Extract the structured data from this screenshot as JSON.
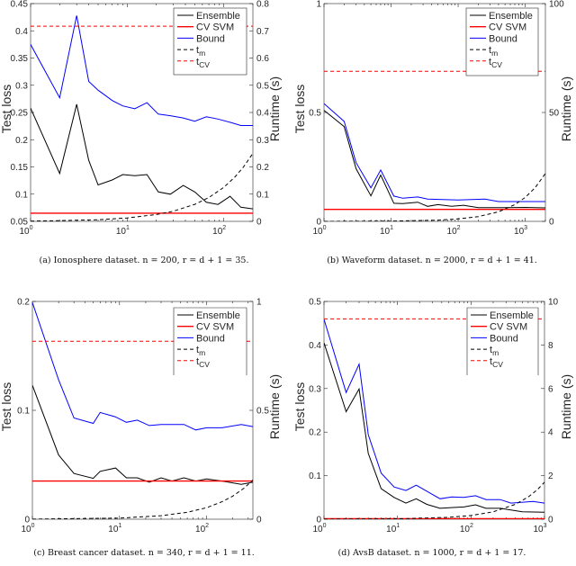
{
  "chart_data": [
    {
      "type": "line",
      "caption": "(a) Ionosphere dataset. n = 200, r = d + 1 = 35.",
      "xscale": "log",
      "xlim": [
        1,
        200
      ],
      "xticks": [
        {
          "base": "10",
          "exp": "0",
          "value": 1
        },
        {
          "base": "10",
          "exp": "1",
          "value": 10
        },
        {
          "base": "10",
          "exp": "2",
          "value": 100
        }
      ],
      "ylabel": "Test loss",
      "ylim": [
        0.05,
        0.45
      ],
      "yticks": [
        "0.05",
        "0.1",
        "0.15",
        "0.2",
        "0.25",
        "0.3",
        "0.35",
        "0.4",
        "0.45"
      ],
      "y2label": "Runtime (s)",
      "y2lim": [
        0,
        0.8
      ],
      "y2ticks": [
        "0",
        "0.1",
        "0.2",
        "0.3",
        "0.4",
        "0.5",
        "0.6",
        "0.7",
        "0.8"
      ],
      "legend_position": "top-right",
      "series": [
        {
          "name": "Ensemble",
          "color": "#000000",
          "dash": "solid",
          "axis": "left",
          "x": [
            1,
            2,
            3,
            4,
            5,
            7,
            9,
            12,
            16,
            21,
            28,
            38,
            50,
            66,
            87,
            116,
            150,
            200
          ],
          "y": [
            0.258,
            0.138,
            0.265,
            0.162,
            0.117,
            0.126,
            0.136,
            0.134,
            0.136,
            0.104,
            0.1,
            0.116,
            0.104,
            0.085,
            0.081,
            0.096,
            0.076,
            0.073
          ]
        },
        {
          "name": "CV SVM",
          "color": "#ff0000",
          "dash": "solid",
          "axis": "left",
          "x": [
            1,
            200
          ],
          "y": [
            0.065,
            0.065
          ]
        },
        {
          "name": "Bound",
          "color": "#0000ff",
          "dash": "solid",
          "axis": "left",
          "x": [
            1,
            2,
            3,
            4,
            5,
            7,
            9,
            12,
            16,
            21,
            28,
            38,
            50,
            66,
            87,
            116,
            150,
            200
          ],
          "y": [
            0.375,
            0.277,
            0.428,
            0.307,
            0.291,
            0.272,
            0.262,
            0.257,
            0.268,
            0.247,
            0.244,
            0.24,
            0.234,
            0.242,
            0.238,
            0.232,
            0.226,
            0.226
          ]
        },
        {
          "name": "t_m",
          "color": "#000000",
          "dash": "dashed",
          "axis": "right",
          "x": [
            1,
            2,
            5,
            10,
            20,
            30,
            50,
            70,
            100,
            130,
            160,
            200
          ],
          "y": [
            0.001,
            0.0025,
            0.006,
            0.0125,
            0.025,
            0.0375,
            0.0625,
            0.0875,
            0.125,
            0.1625,
            0.2,
            0.25
          ]
        },
        {
          "name": "t_CV",
          "color": "#ff0000",
          "dash": "dashed",
          "axis": "right",
          "x": [
            1,
            200
          ],
          "y": [
            0.717,
            0.717
          ]
        }
      ]
    },
    {
      "type": "line",
      "caption": "(b) Waveform dataset. n = 2000, r = d + 1 = 41.",
      "xscale": "log",
      "xlim": [
        1,
        2000
      ],
      "xticks": [
        {
          "base": "10",
          "exp": "0",
          "value": 1
        },
        {
          "base": "10",
          "exp": "1",
          "value": 10
        },
        {
          "base": "10",
          "exp": "2",
          "value": 100
        },
        {
          "base": "10",
          "exp": "3",
          "value": 1000
        }
      ],
      "ylabel": "Test loss",
      "ylim": [
        0,
        1
      ],
      "yticks": [
        "0",
        "0.5",
        "1"
      ],
      "y2label": "Runtime (s)",
      "y2lim": [
        0,
        100
      ],
      "y2ticks": [
        "0",
        "50",
        "100"
      ],
      "legend_position": "top-right",
      "series": [
        {
          "name": "Ensemble",
          "color": "#000000",
          "dash": "solid",
          "axis": "left",
          "x": [
            1,
            2,
            3,
            5,
            7,
            11,
            15,
            25,
            35,
            50,
            80,
            120,
            200,
            500,
            1000,
            2000
          ],
          "y": [
            0.51,
            0.435,
            0.242,
            0.117,
            0.213,
            0.083,
            0.082,
            0.088,
            0.069,
            0.077,
            0.069,
            0.074,
            0.063,
            0.063,
            0.064,
            0.062
          ]
        },
        {
          "name": "CV SVM",
          "color": "#ff0000",
          "dash": "solid",
          "axis": "left",
          "x": [
            1,
            2000
          ],
          "y": [
            0.055,
            0.055
          ]
        },
        {
          "name": "Bound",
          "color": "#0000ff",
          "dash": "solid",
          "axis": "left",
          "x": [
            1,
            2,
            3,
            5,
            7,
            11,
            15,
            25,
            35,
            100,
            250,
            400,
            2000
          ],
          "y": [
            0.541,
            0.459,
            0.27,
            0.154,
            0.236,
            0.116,
            0.106,
            0.112,
            0.102,
            0.098,
            0.102,
            0.091,
            0.091
          ]
        },
        {
          "name": "t_m",
          "color": "#000000",
          "dash": "dashed",
          "axis": "right",
          "x": [
            1,
            10,
            50,
            100,
            200,
            400,
            700,
            1000,
            1400,
            2000
          ],
          "y": [
            0.011,
            0.11,
            0.55,
            1.1,
            2.2,
            4.4,
            7.7,
            11,
            15.4,
            22
          ]
        },
        {
          "name": "t_CV",
          "color": "#ff0000",
          "dash": "dashed",
          "axis": "right",
          "x": [
            1,
            2000
          ],
          "y": [
            68.9,
            68.9
          ]
        }
      ]
    },
    {
      "type": "line",
      "caption": "(c) Breast cancer dataset. n = 340, r = d + 1 = 11.",
      "xscale": "log",
      "xlim": [
        1,
        340
      ],
      "xticks": [
        {
          "base": "10",
          "exp": "0",
          "value": 1
        },
        {
          "base": "10",
          "exp": "1",
          "value": 10
        },
        {
          "base": "10",
          "exp": "2",
          "value": 100
        }
      ],
      "ylabel": "Test loss",
      "ylim": [
        0,
        0.2
      ],
      "yticks": [
        "0",
        "0.1",
        "0.2"
      ],
      "y2label": "Runtime (s)",
      "y2lim": [
        0,
        1
      ],
      "y2ticks": [
        "0",
        "0.5",
        "1"
      ],
      "legend_position": "top-right",
      "series": [
        {
          "name": "Ensemble",
          "color": "#000000",
          "dash": "solid",
          "axis": "left",
          "x": [
            1,
            2,
            3,
            5,
            6,
            9,
            12,
            16,
            22,
            30,
            40,
            55,
            75,
            100,
            150,
            250,
            340
          ],
          "y": [
            0.123,
            0.059,
            0.042,
            0.0375,
            0.044,
            0.047,
            0.038,
            0.038,
            0.034,
            0.038,
            0.035,
            0.038,
            0.035,
            0.037,
            0.035,
            0.032,
            0.034
          ]
        },
        {
          "name": "CV SVM",
          "color": "#ff0000",
          "dash": "solid",
          "axis": "left",
          "x": [
            1,
            340
          ],
          "y": [
            0.035,
            0.035
          ]
        },
        {
          "name": "Bound",
          "color": "#0000ff",
          "dash": "solid",
          "axis": "left",
          "x": [
            1,
            2,
            3,
            5,
            6,
            9,
            12,
            16,
            22,
            30,
            55,
            75,
            100,
            150,
            250,
            340
          ],
          "y": [
            0.199,
            0.128,
            0.093,
            0.088,
            0.098,
            0.094,
            0.089,
            0.091,
            0.086,
            0.087,
            0.087,
            0.082,
            0.084,
            0.084,
            0.087,
            0.085
          ]
        },
        {
          "name": "t_m",
          "color": "#000000",
          "dash": "dashed",
          "axis": "right",
          "x": [
            1,
            10,
            30,
            60,
            100,
            150,
            200,
            270,
            340
          ],
          "y": [
            0.0005,
            0.005,
            0.016,
            0.032,
            0.053,
            0.08,
            0.106,
            0.143,
            0.18
          ]
        },
        {
          "name": "t_CV",
          "color": "#ff0000",
          "dash": "dashed",
          "axis": "right",
          "x": [
            1,
            340
          ],
          "y": [
            0.817,
            0.817
          ]
        }
      ]
    },
    {
      "type": "line",
      "caption": "(d) AvsB dataset. n = 1000, r = d + 1 = 17.",
      "xscale": "log",
      "xlim": [
        1,
        1000
      ],
      "xticks": [
        {
          "base": "10",
          "exp": "0",
          "value": 1
        },
        {
          "base": "10",
          "exp": "1",
          "value": 10
        },
        {
          "base": "10",
          "exp": "2",
          "value": 100
        },
        {
          "base": "10",
          "exp": "3",
          "value": 1000
        }
      ],
      "ylabel": "Test loss",
      "ylim": [
        0,
        0.5
      ],
      "yticks": [
        "0",
        "0.1",
        "0.2",
        "0.3",
        "0.4",
        "0.5"
      ],
      "y2label": "Runtime (s)",
      "y2lim": [
        0,
        10
      ],
      "y2ticks": [
        "0",
        "2",
        "4",
        "6",
        "8",
        "10"
      ],
      "legend_position": "top-right",
      "series": [
        {
          "name": "Ensemble",
          "color": "#000000",
          "dash": "solid",
          "axis": "left",
          "x": [
            1,
            2,
            3,
            4,
            6,
            9,
            13,
            18,
            25,
            38,
            60,
            80,
            115,
            160,
            250,
            500,
            1000
          ],
          "y": [
            0.405,
            0.247,
            0.299,
            0.151,
            0.07,
            0.05,
            0.037,
            0.047,
            0.034,
            0.025,
            0.027,
            0.028,
            0.033,
            0.025,
            0.025,
            0.017,
            0.016
          ]
        },
        {
          "name": "CV SVM",
          "color": "#ff0000",
          "dash": "solid",
          "axis": "left",
          "x": [
            1,
            1000
          ],
          "y": [
            0.001,
            0.001
          ]
        },
        {
          "name": "Bound",
          "color": "#0000ff",
          "dash": "solid",
          "axis": "left",
          "x": [
            1,
            2,
            3,
            4,
            6,
            9,
            13,
            18,
            38,
            55,
            80,
            115,
            160,
            250,
            350,
            700,
            1000
          ],
          "y": [
            0.459,
            0.291,
            0.356,
            0.194,
            0.106,
            0.074,
            0.066,
            0.078,
            0.047,
            0.051,
            0.05,
            0.054,
            0.045,
            0.045,
            0.037,
            0.041,
            0.037
          ]
        },
        {
          "name": "t_m",
          "color": "#000000",
          "dash": "dashed",
          "axis": "right",
          "x": [
            1,
            10,
            50,
            100,
            200,
            400,
            600,
            800,
            1000
          ],
          "y": [
            0.0017,
            0.017,
            0.085,
            0.17,
            0.34,
            0.68,
            1.02,
            1.36,
            1.7
          ]
        },
        {
          "name": "t_CV",
          "color": "#ff0000",
          "dash": "dashed",
          "axis": "right",
          "x": [
            1,
            1000
          ],
          "y": [
            9.2,
            9.2
          ]
        }
      ]
    }
  ]
}
